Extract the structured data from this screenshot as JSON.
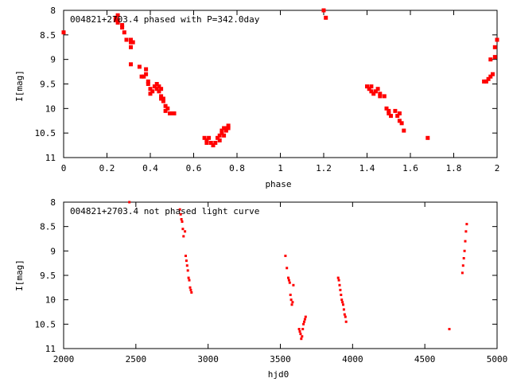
{
  "colors": {
    "points": "#ff0000",
    "axes": "#000000",
    "background": "#ffffff"
  },
  "chart_data": [
    {
      "type": "scatter",
      "title": "004821+2703.4 phased with P=342.0day",
      "xlabel": "phase",
      "ylabel": "I[mag]",
      "xlim": [
        0,
        2
      ],
      "ylim": [
        11,
        8
      ],
      "y_inverted": true,
      "grid": false,
      "xticks": [
        "0",
        "0.2",
        "0.4",
        "0.6",
        "0.8",
        "1",
        "1.2",
        "1.4",
        "1.6",
        "1.8",
        "2"
      ],
      "yticks": [
        "8",
        "8.5",
        "9",
        "9.5",
        "10",
        "10.5",
        "11"
      ],
      "marker": "large",
      "series": [
        {
          "x": [
            0.0,
            0.24,
            0.24,
            0.25,
            0.25,
            0.25,
            0.27,
            0.27,
            0.28,
            0.29,
            0.31,
            0.31,
            0.31,
            0.32,
            0.31,
            0.35,
            0.36,
            0.37,
            0.38,
            0.38,
            0.39,
            0.39,
            0.4,
            0.4,
            0.41,
            0.42,
            0.43,
            0.43,
            0.44,
            0.44,
            0.45,
            0.45,
            0.45,
            0.46,
            0.46,
            0.47,
            0.47,
            0.48,
            0.49,
            0.5,
            0.51,
            0.65,
            0.66,
            0.66,
            0.67,
            0.68,
            0.69,
            0.7,
            0.71,
            0.72,
            0.72,
            0.73,
            0.73,
            0.74,
            0.74,
            0.75,
            0.75,
            0.76,
            0.76,
            1.2,
            1.21,
            1.4,
            1.41,
            1.42,
            1.42,
            1.43,
            1.44,
            1.45,
            1.46,
            1.46,
            1.48,
            1.49,
            1.5,
            1.5,
            1.51,
            1.53,
            1.54,
            1.55,
            1.55,
            1.56,
            1.57,
            1.68,
            1.94,
            1.95,
            1.96,
            1.97,
            1.98,
            1.99,
            2.0,
            1.97,
            1.99
          ],
          "y": [
            8.45,
            8.15,
            8.2,
            8.1,
            8.2,
            8.25,
            8.3,
            8.35,
            8.45,
            8.6,
            8.65,
            8.6,
            8.75,
            8.65,
            9.1,
            9.15,
            9.35,
            9.35,
            9.2,
            9.3,
            9.45,
            9.5,
            9.6,
            9.7,
            9.65,
            9.55,
            9.5,
            9.6,
            9.55,
            9.65,
            9.6,
            9.75,
            9.8,
            9.8,
            9.85,
            9.95,
            10.05,
            10.0,
            10.1,
            10.1,
            10.1,
            10.6,
            10.65,
            10.7,
            10.6,
            10.7,
            10.75,
            10.7,
            10.6,
            10.55,
            10.65,
            10.5,
            10.45,
            10.4,
            10.55,
            10.45,
            10.4,
            10.35,
            10.4,
            8.0,
            8.15,
            9.55,
            9.6,
            9.55,
            9.65,
            9.7,
            9.65,
            9.6,
            9.7,
            9.75,
            9.75,
            10.0,
            10.05,
            10.1,
            10.15,
            10.05,
            10.15,
            10.1,
            10.25,
            10.3,
            10.45,
            10.6,
            9.45,
            9.45,
            9.4,
            9.35,
            9.3,
            8.75,
            8.6,
            9.0,
            8.95
          ]
        }
      ]
    },
    {
      "type": "scatter",
      "title": "004821+2703.4 not phased light curve",
      "xlabel": "hjd0",
      "ylabel": "I[mag]",
      "xlim": [
        2000,
        5000
      ],
      "ylim": [
        11,
        8
      ],
      "y_inverted": true,
      "grid": false,
      "xticks": [
        "2000",
        "2500",
        "3000",
        "3500",
        "4000",
        "4500",
        "5000"
      ],
      "yticks": [
        "8",
        "8.5",
        "9",
        "9.5",
        "10",
        "10.5",
        "11"
      ],
      "marker": "small",
      "series": [
        {
          "x": [
            2455,
            2805,
            2810,
            2815,
            2820,
            2825,
            2830,
            2840,
            2845,
            2850,
            2855,
            2860,
            2865,
            2870,
            2875,
            2880,
            2885,
            3535,
            3545,
            3555,
            3560,
            3565,
            3570,
            3575,
            3580,
            3585,
            3590,
            3630,
            3635,
            3640,
            3645,
            3650,
            3655,
            3660,
            3665,
            3670,
            3675,
            3900,
            3905,
            3910,
            3915,
            3920,
            3925,
            3930,
            3935,
            3940,
            3945,
            3950,
            3955,
            4670,
            4760,
            4765,
            4770,
            4775,
            4780,
            4785,
            4790
          ],
          "y": [
            8.0,
            8.15,
            8.25,
            8.35,
            8.4,
            8.55,
            8.7,
            8.6,
            9.1,
            9.2,
            9.3,
            9.4,
            9.55,
            9.6,
            9.75,
            9.8,
            9.85,
            9.1,
            9.35,
            9.55,
            9.6,
            9.65,
            9.9,
            10.0,
            10.1,
            10.05,
            9.7,
            10.6,
            10.65,
            10.7,
            10.8,
            10.75,
            10.6,
            10.5,
            10.45,
            10.4,
            10.35,
            9.55,
            9.6,
            9.7,
            9.8,
            9.9,
            10.0,
            10.05,
            10.1,
            10.2,
            10.3,
            10.35,
            10.45,
            10.6,
            9.45,
            9.3,
            9.15,
            9.0,
            8.8,
            8.6,
            8.45
          ]
        }
      ]
    }
  ]
}
